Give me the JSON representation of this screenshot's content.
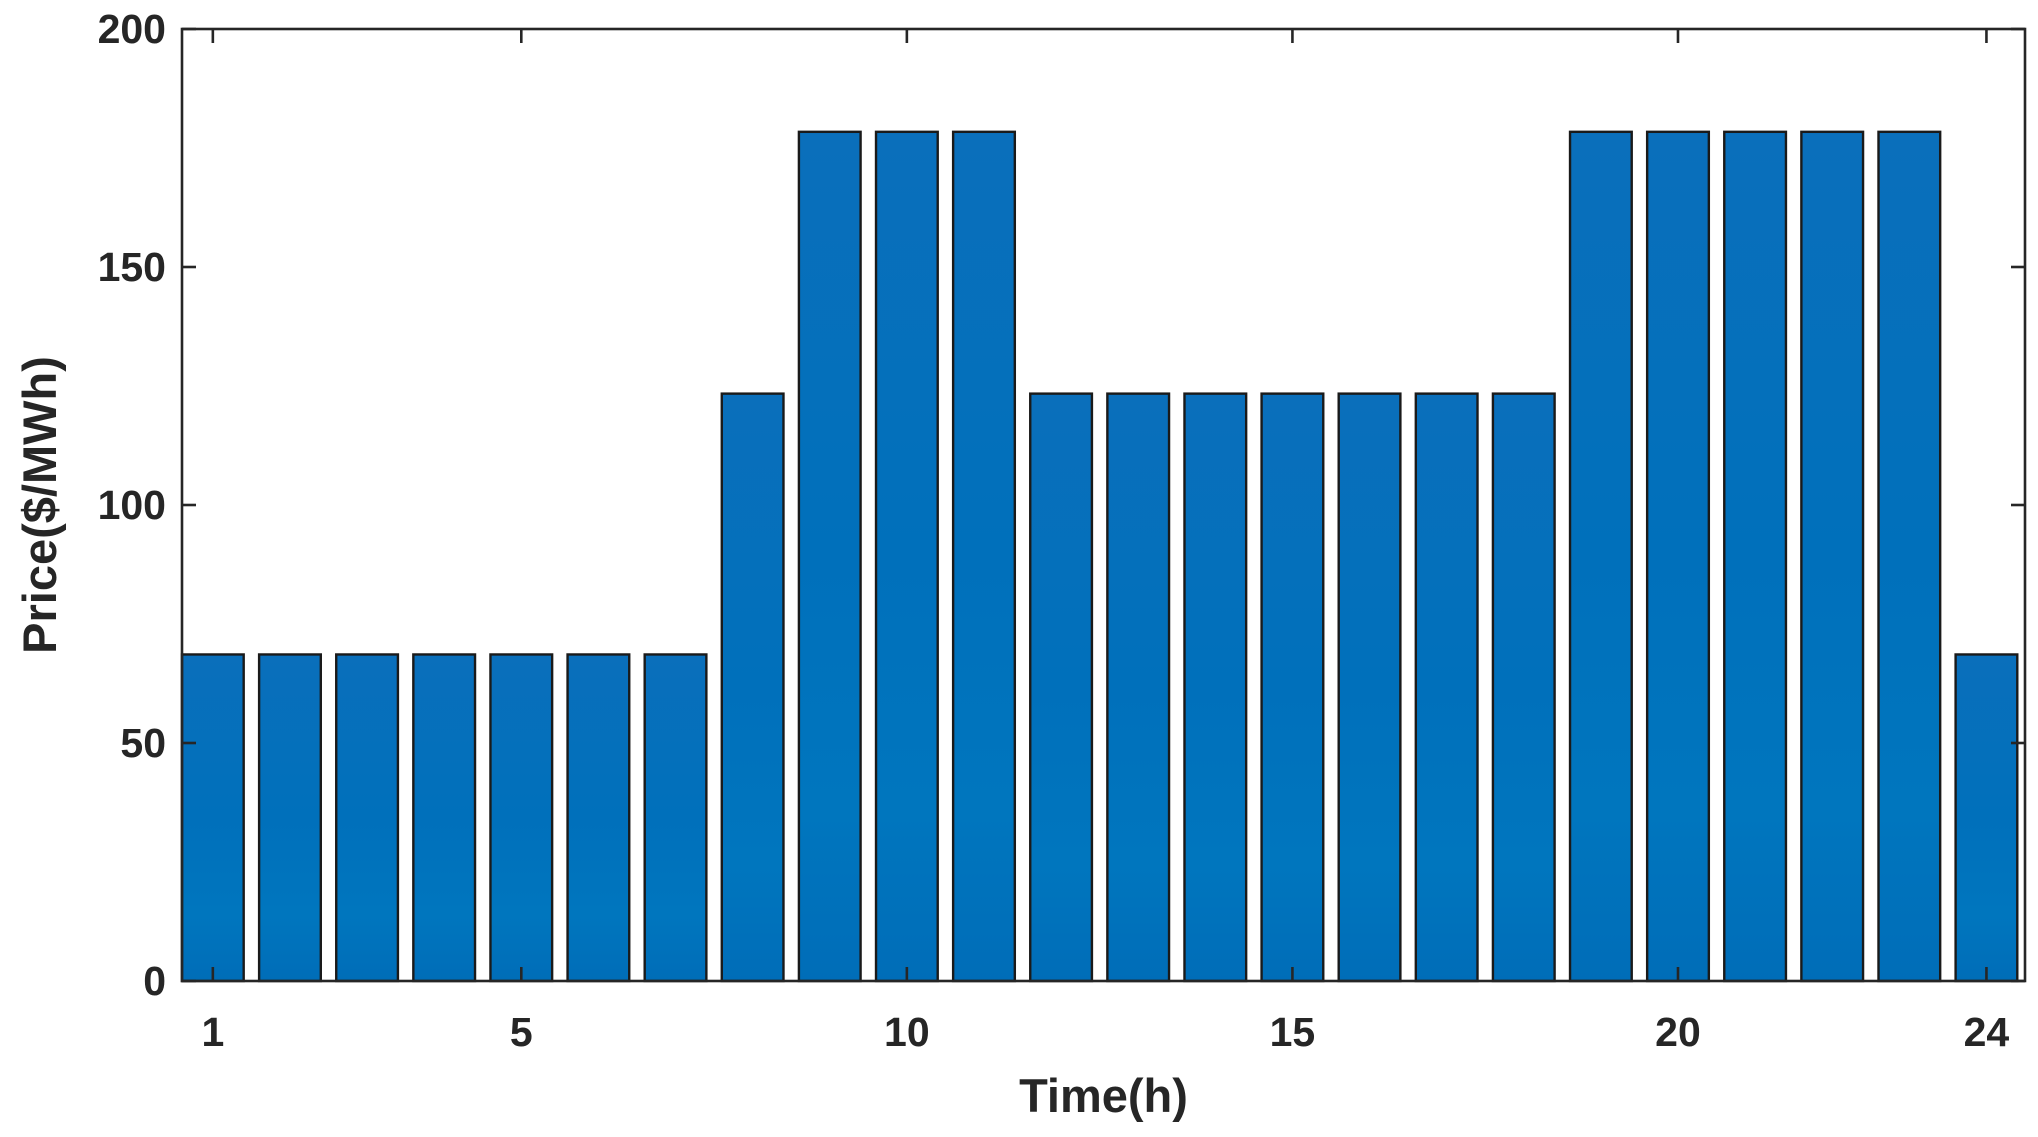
{
  "chart_data": {
    "type": "bar",
    "xlabel": "Time(h)",
    "ylabel": "Price($/MWh)",
    "categories": [
      1,
      2,
      3,
      4,
      5,
      6,
      7,
      8,
      9,
      10,
      11,
      12,
      13,
      14,
      15,
      16,
      17,
      18,
      19,
      20,
      21,
      22,
      23,
      24
    ],
    "values": [
      68.6,
      68.6,
      68.6,
      68.6,
      68.6,
      68.6,
      68.6,
      123.4,
      178.4,
      178.4,
      178.4,
      123.4,
      123.4,
      123.4,
      123.4,
      123.4,
      123.4,
      123.4,
      178.4,
      178.4,
      178.4,
      178.4,
      178.4,
      68.6
    ],
    "xlim": [
      0.6,
      24.5
    ],
    "ylim": [
      0,
      200
    ],
    "xticks": [
      1,
      5,
      10,
      15,
      20,
      24
    ],
    "yticks": [
      0,
      50,
      100,
      150,
      200
    ],
    "xtick_labels": [
      "1",
      "5",
      "10",
      "15",
      "20",
      "24"
    ],
    "ytick_labels": [
      "0",
      "50",
      "100",
      "150",
      "200"
    ],
    "grid": false,
    "bar_width_fraction": 0.8,
    "bar_color": "#0072BD",
    "edge_color": "#1a1a1a",
    "axis_color": "#262626"
  }
}
